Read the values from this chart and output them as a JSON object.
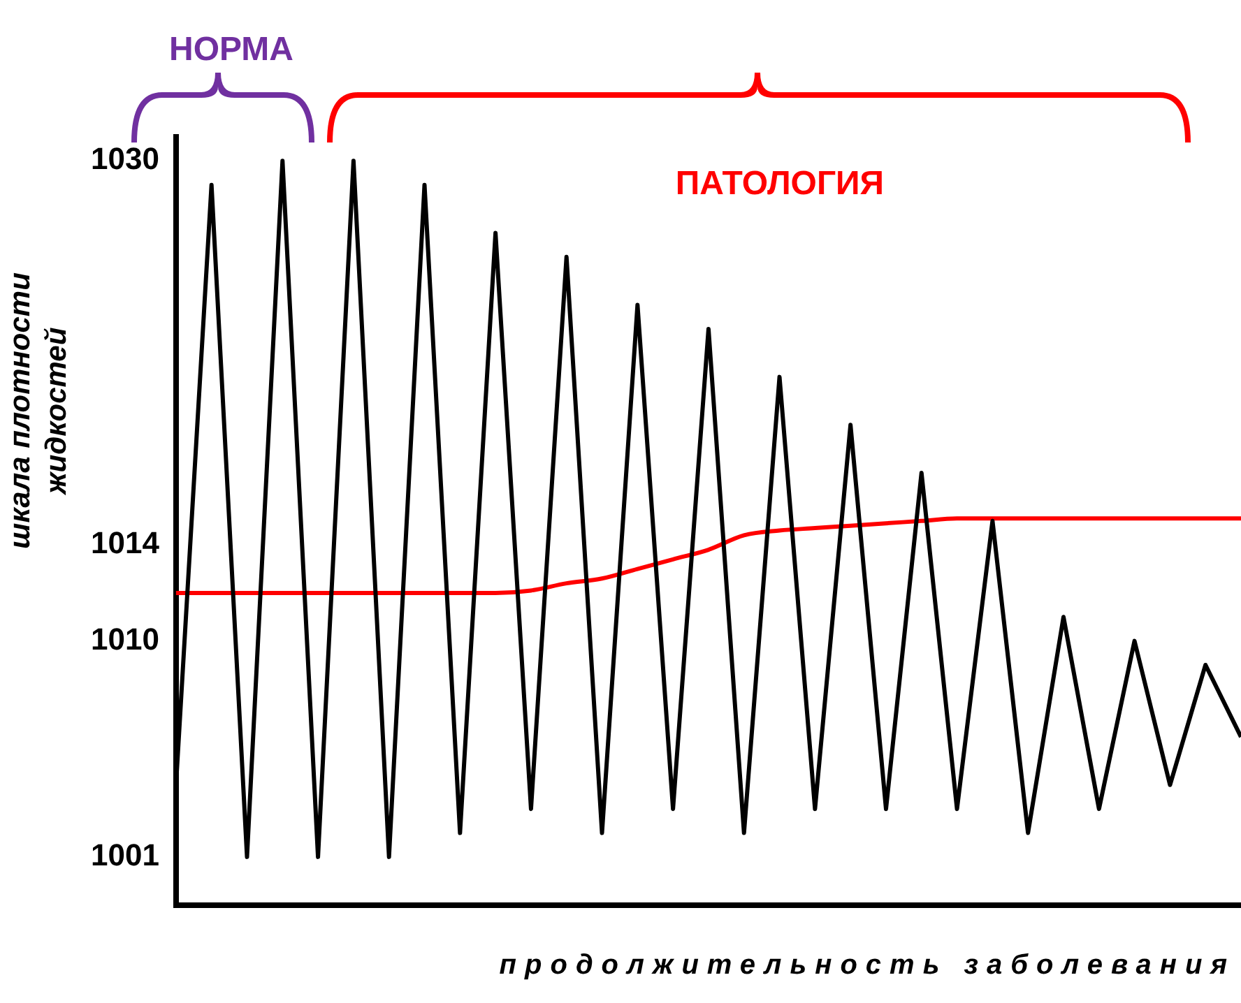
{
  "chart_data": {
    "type": "line",
    "ylabel": "шкала плотности жидкостей",
    "xlabel": "продолжительность заболевания",
    "annotations": [
      "НОРМА",
      "ПАТОЛОГИЯ"
    ],
    "categories": [
      null,
      null,
      null,
      null,
      null,
      null,
      null,
      null,
      null,
      null,
      null,
      null,
      null,
      null,
      null,
      null,
      null,
      null,
      null,
      null,
      null,
      null,
      null,
      null,
      null,
      null,
      null,
      null,
      null,
      null,
      null
    ],
    "series": [
      {
        "color": "#000000",
        "values": [
          1004,
          1029,
          1001,
          1030,
          1001,
          1030,
          1001,
          1029,
          1002,
          1027,
          1003,
          1026,
          1002,
          1024,
          1003,
          1023,
          1002,
          1021,
          1003,
          1019,
          1003,
          1017,
          1003,
          1015,
          1002,
          1011,
          1003,
          1010,
          1004,
          1009,
          1006
        ]
      },
      {
        "color": "#ff0000",
        "values": [
          1012,
          1012,
          1012,
          1012,
          1012,
          1012,
          1012,
          1012,
          1012,
          1012,
          1012.1,
          1012.4,
          1012.6,
          1013,
          1013.4,
          1013.8,
          1014.4,
          1014.6,
          1014.7,
          1014.8,
          1014.9,
          1015,
          1015.1,
          1015.1,
          1015.1,
          1015.1,
          1015.1,
          1015.1,
          1015.1,
          1015.1,
          1015.1
        ]
      }
    ],
    "ylim": [
      999,
      1031
    ],
    "yticks": [
      1001,
      1010,
      1014,
      1030
    ],
    "tick_labels": "y",
    "grid": false,
    "legend": false,
    "marker": "none",
    "line_style": "solid"
  }
}
